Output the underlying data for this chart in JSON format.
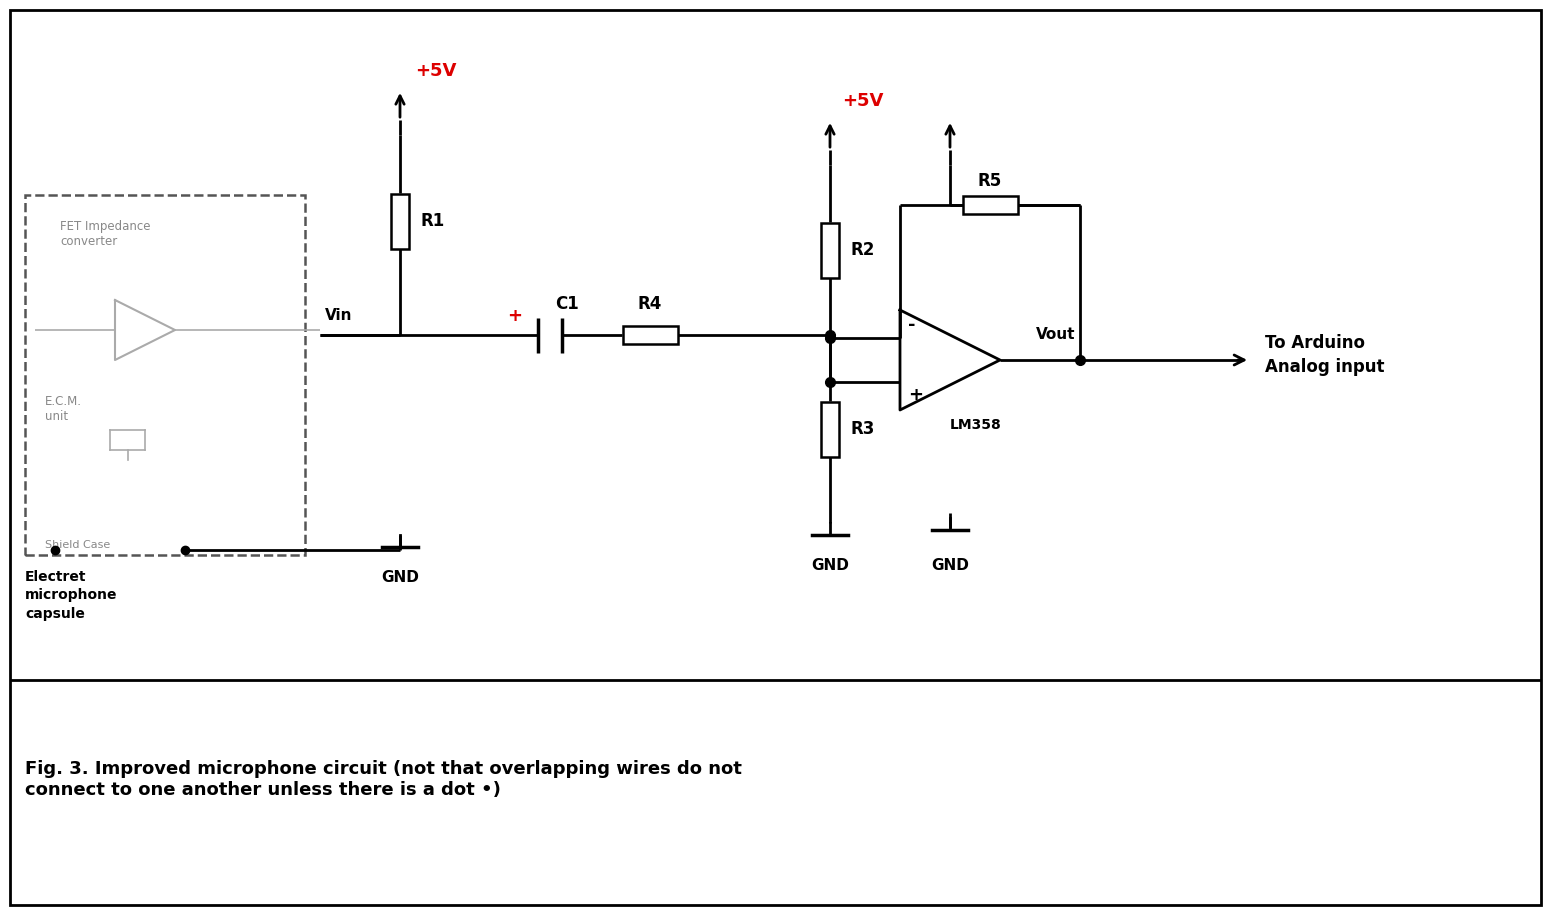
{
  "title_caption": "Fig. 3. Improved microphone circuit (not that overlapping wires do not\nconnect to one another unless there is a dot •)",
  "bg_color": "#ffffff",
  "border_color": "#000000",
  "wire_color": "#000000",
  "component_color": "#000000",
  "grey_color": "#aaaaaa",
  "red_color": "#dd0000",
  "label_R1": "R1",
  "label_R2": "R2",
  "label_R3": "R3",
  "label_R4": "R4",
  "label_R5": "R5",
  "label_C1": "C1",
  "label_LM358": "LM358",
  "label_Vin": "Vin",
  "label_Vout": "Vout",
  "label_5V": "+5V",
  "label_GND": "GND",
  "label_arduino": "To Arduino\nAnalog input",
  "label_FET": "FET Impedance\nconverter",
  "label_ECM": "E.C.M.\nunit",
  "label_shield": "Shield Case",
  "label_mic": "Electret\nmicrophone\ncapsule"
}
